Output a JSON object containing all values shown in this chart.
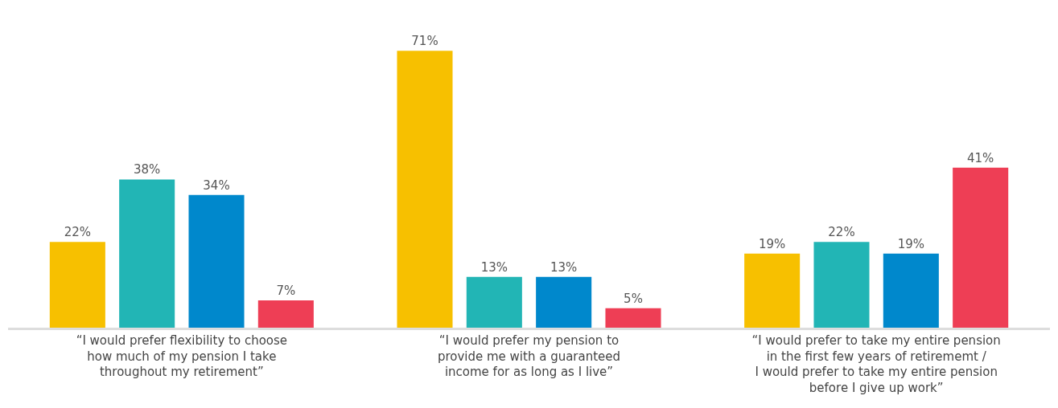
{
  "chart_data": {
    "type": "bar",
    "categories": [
      "“I would prefer flexibility to choose\nhow much of my pension I take\nthroughout my retirement”",
      "“I would prefer my pension to\nprovide me with a guaranteed\nincome for as long as I live”",
      "“I would prefer to take my entire pension\nin the first few years of retirememt /\nI would prefer to take my entire pension\nbefore I give up work”"
    ],
    "series": [
      {
        "color": "#f7c000",
        "values": [
          22,
          71,
          19
        ],
        "value_labels": [
          "22%",
          "71%",
          "19%"
        ]
      },
      {
        "color": "#22b5b5",
        "values": [
          38,
          13,
          22
        ],
        "value_labels": [
          "38%",
          "13%",
          "22%"
        ]
      },
      {
        "color": "#0088cc",
        "values": [
          34,
          13,
          19
        ],
        "value_labels": [
          "34%",
          "13%",
          "19%"
        ]
      },
      {
        "color": "#ee3e55",
        "values": [
          7,
          5,
          41
        ],
        "value_labels": [
          "7%",
          "5%",
          "41%"
        ]
      }
    ],
    "legend": false
  }
}
